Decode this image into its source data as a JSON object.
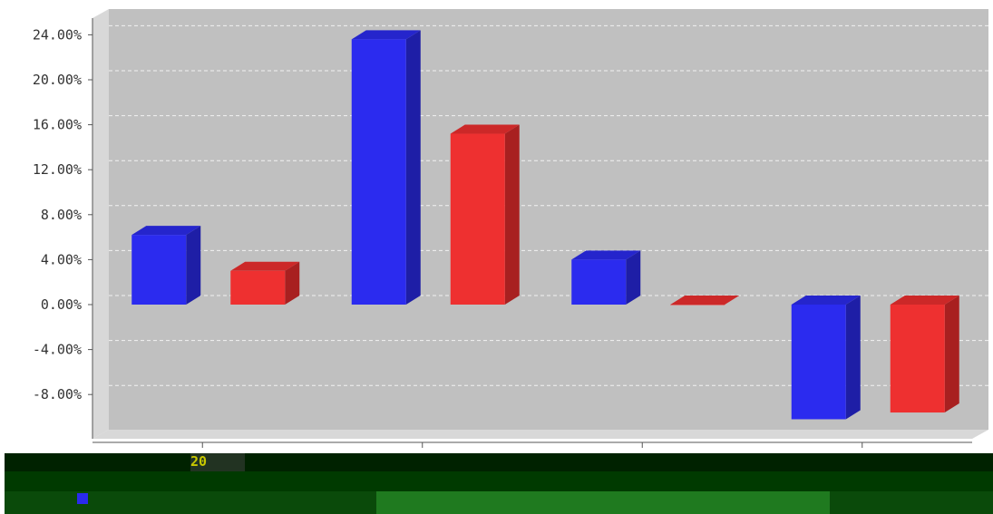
{
  "chart_data": {
    "type": "bar",
    "ylim": [
      -10,
      25
    ],
    "y_ticks": [
      24,
      20,
      16,
      12,
      8,
      4,
      0,
      -4,
      -8
    ],
    "y_tick_labels": [
      "24.00%",
      "20.00%",
      "16.00%",
      "12.00%",
      "8.00%",
      "4.00%",
      "0.00%",
      "-4.00%",
      "-8.00%"
    ],
    "categories": [
      "",
      "",
      "",
      ""
    ],
    "grid": true,
    "series": [
      {
        "values": [
          6.2,
          23.6,
          4.0,
          -10.2
        ],
        "color": "#2b2bef",
        "side_color": "#1e1ea6",
        "top_color": "#2525cc"
      },
      {
        "values": [
          3.0,
          15.2,
          0.0,
          -9.6
        ],
        "color": "#ee3030",
        "side_color": "#a82020",
        "top_color": "#cc2828"
      }
    ]
  },
  "footer": {
    "legend_text": "20",
    "legend_color": "#2a2aee"
  }
}
